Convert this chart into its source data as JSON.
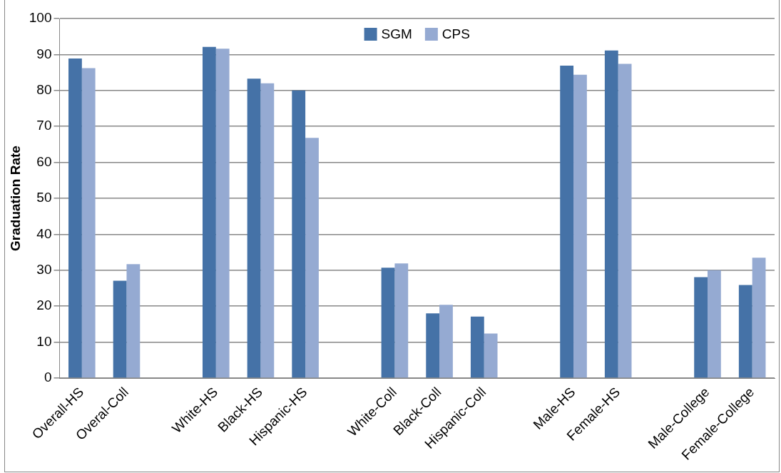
{
  "chart_data": {
    "type": "bar",
    "ylabel": "Graduation Rate",
    "categories": [
      "Overall-HS",
      "Overal-Coll",
      null,
      "White-HS",
      "Black-HS",
      "Hispanic-HS",
      null,
      "White-Coll",
      "Black-Coll",
      "Hispanic-Coll",
      null,
      "Male-HS",
      "Female-HS",
      null,
      "Male-College",
      "Female-College"
    ],
    "series": [
      {
        "name": "SGM",
        "color": "#4572a7",
        "values": [
          88.9,
          27.1,
          null,
          92.1,
          83.3,
          80.0,
          null,
          30.7,
          18.0,
          17.1,
          null,
          86.9,
          91.1,
          null,
          28.1,
          25.9
        ]
      },
      {
        "name": "CPS",
        "color": "#95aad2",
        "values": [
          86.2,
          31.7,
          null,
          91.6,
          82.0,
          66.8,
          null,
          31.9,
          20.4,
          12.4,
          null,
          84.4,
          87.4,
          null,
          30.0,
          33.5
        ]
      }
    ],
    "ylim": [
      0,
      100
    ],
    "yticks": [
      0,
      10,
      20,
      30,
      40,
      50,
      60,
      70,
      80,
      90,
      100
    ],
    "grid": "y",
    "legend": "top"
  }
}
